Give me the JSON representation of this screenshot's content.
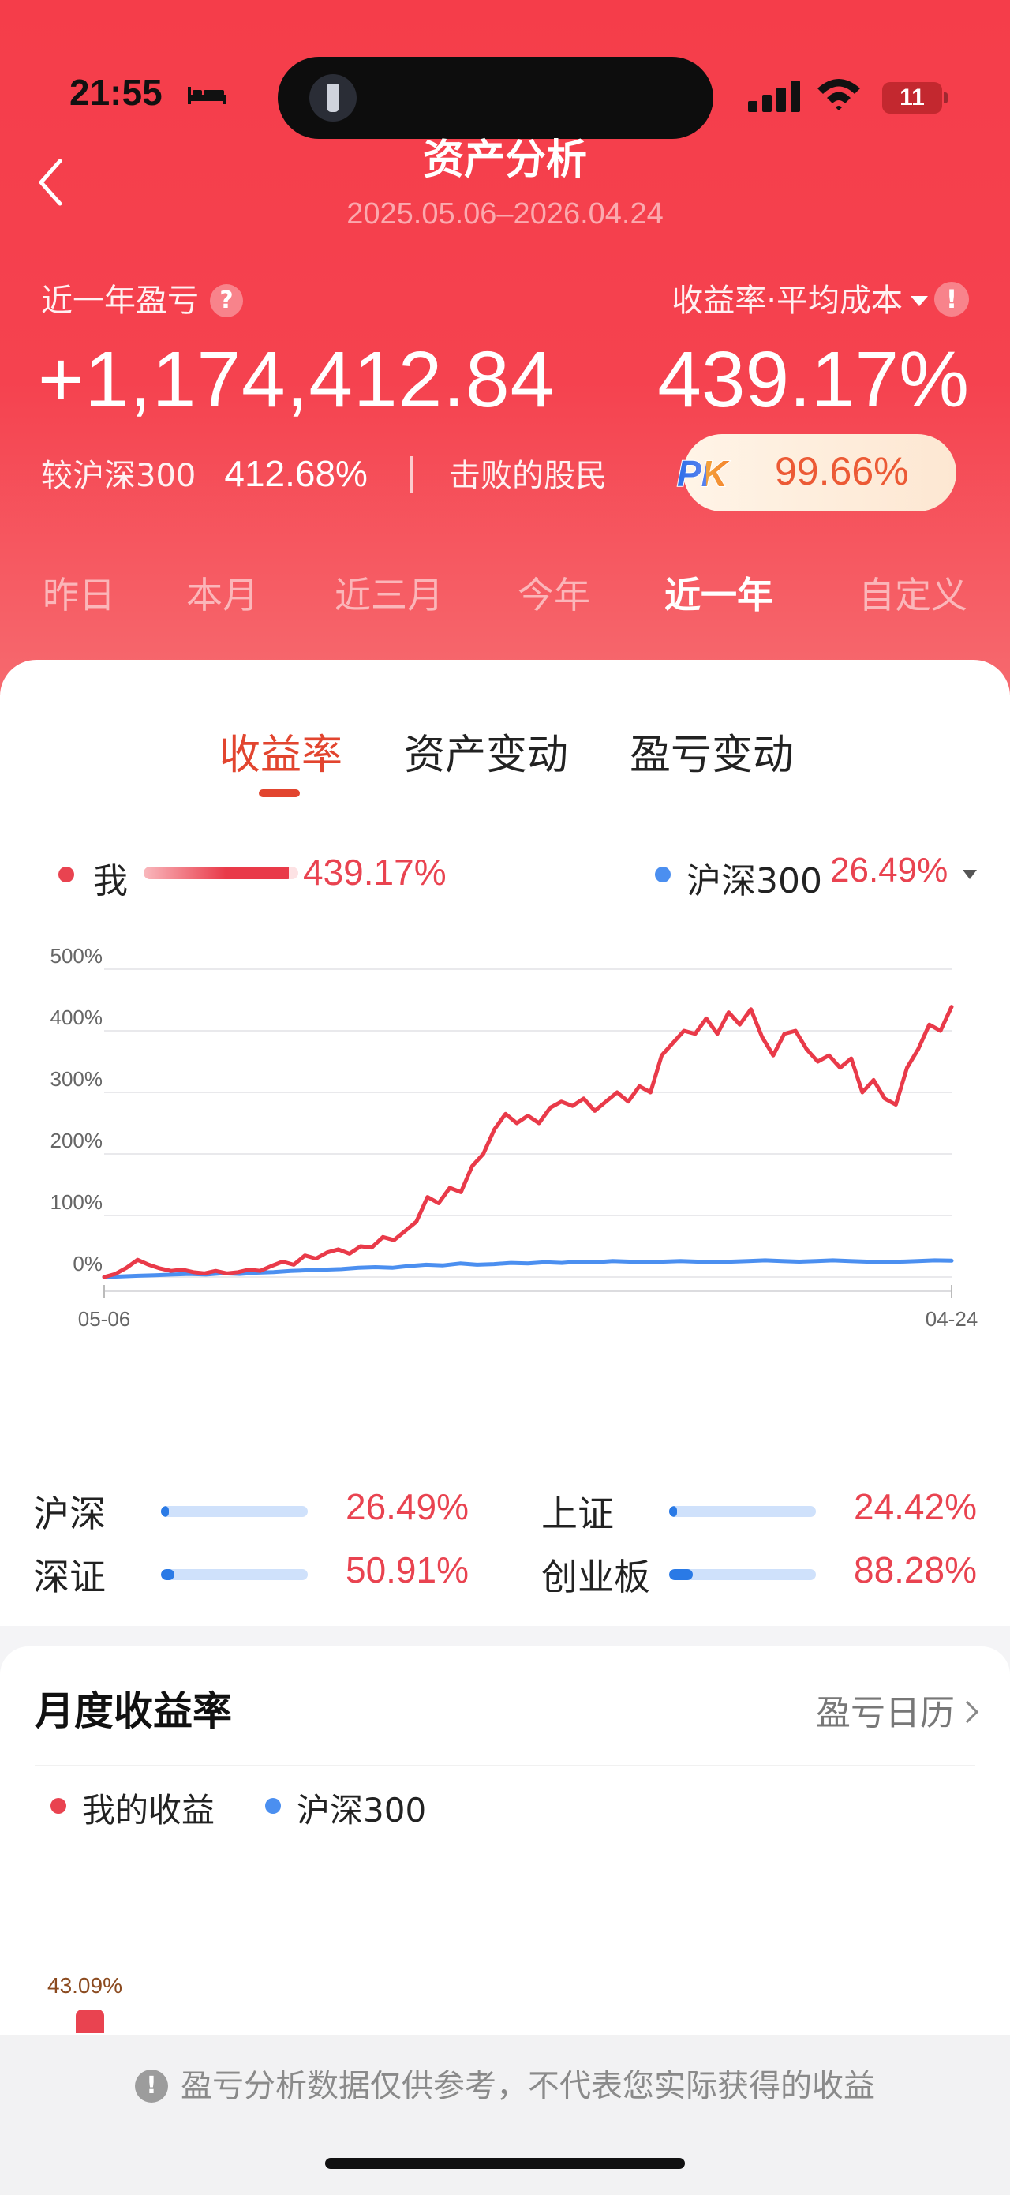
{
  "status_bar": {
    "time": "21:55",
    "battery": "11"
  },
  "nav": {
    "title": "资产分析",
    "date_range": "2025.05.06–2026.04.24"
  },
  "summary": {
    "pl_label": "近一年盈亏",
    "help_icon": "?",
    "rate_label": "收益率·平均成本",
    "info_icon": "!",
    "pl_value": "+1,174,412.84",
    "rate_value": "439.17%",
    "vs_label": "较沪深300",
    "vs_value": "412.68%",
    "beat_label": "击败的股民",
    "pk_text": "PK",
    "beat_value": "99.66%"
  },
  "periods": [
    "昨日",
    "本月",
    "近三月",
    "今年",
    "近一年",
    "自定义"
  ],
  "active_period": "近一年",
  "tabs": [
    "收益率",
    "资产变动",
    "盈亏变动"
  ],
  "active_tab": "收益率",
  "legend": {
    "me_label": "我",
    "me_value": "439.17%",
    "hs_label": "沪深300",
    "hs_value": "26.49%"
  },
  "colors": {
    "primary": "#f53d4a",
    "me_line": "#e93a49",
    "hs_line": "#4b8ff0",
    "accent": "#e2452f"
  },
  "chart_data": {
    "type": "line",
    "x_start": "05-06",
    "x_end": "04-24",
    "ylim": [
      0,
      500
    ],
    "y_ticks": [
      "500%",
      "400%",
      "300%",
      "200%",
      "100%",
      "0%"
    ],
    "y_tick_values": [
      500,
      400,
      300,
      200,
      100,
      0
    ],
    "grid": true,
    "series": [
      {
        "name": "我",
        "color": "#e93a49",
        "values": [
          0,
          5,
          15,
          28,
          20,
          14,
          10,
          12,
          8,
          6,
          10,
          6,
          8,
          12,
          10,
          18,
          25,
          20,
          35,
          30,
          40,
          45,
          38,
          50,
          48,
          65,
          60,
          75,
          90,
          130,
          120,
          145,
          138,
          180,
          200,
          240,
          265,
          250,
          262,
          250,
          275,
          285,
          278,
          290,
          270,
          285,
          300,
          285,
          310,
          300,
          360,
          380,
          400,
          395,
          420,
          395,
          430,
          410,
          435,
          390,
          360,
          395,
          400,
          370,
          350,
          360,
          340,
          355,
          300,
          320,
          290,
          280,
          340,
          370,
          410,
          400,
          439
        ]
      },
      {
        "name": "沪深300",
        "color": "#4b8ff0",
        "values": [
          0,
          1,
          2,
          3,
          4,
          5,
          4,
          6,
          5,
          7,
          8,
          10,
          11,
          12,
          13,
          15,
          16,
          15,
          18,
          20,
          19,
          22,
          20,
          21,
          23,
          22,
          24,
          23,
          25,
          24,
          26,
          25,
          24,
          25,
          26,
          25,
          24,
          25,
          26,
          27,
          26,
          25,
          26,
          27,
          26,
          25,
          24,
          25,
          26,
          27,
          26.49
        ]
      }
    ]
  },
  "indices": [
    {
      "name": "沪深",
      "value": "26.49%",
      "fill": 0.05
    },
    {
      "name": "上证",
      "value": "24.42%",
      "fill": 0.04
    },
    {
      "name": "深证",
      "value": "50.91%",
      "fill": 0.09
    },
    {
      "name": "创业板",
      "value": "88.28%",
      "fill": 0.16
    }
  ],
  "monthly": {
    "title": "月度收益率",
    "calendar_link": "盈亏日历",
    "legend_me": "我的收益",
    "legend_hs": "沪深300",
    "first_bar_label": "43.09%",
    "first_bar_value": 43.09
  },
  "footer": {
    "icon": "!",
    "note": "盈亏分析数据仅供参考，不代表您实际获得的收益"
  }
}
